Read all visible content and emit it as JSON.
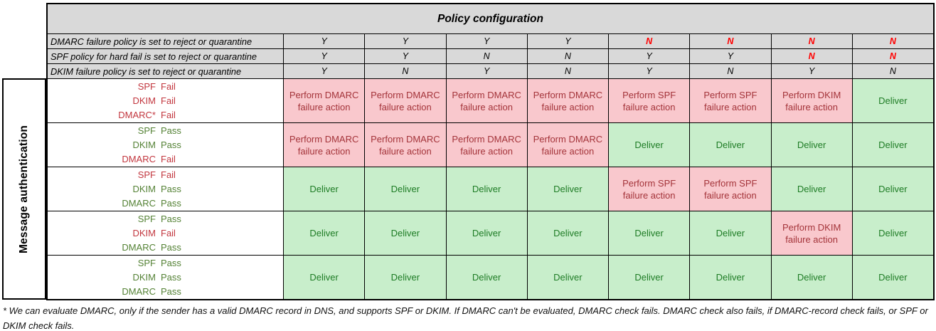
{
  "title": "Policy configuration",
  "axis_label": "Message authentication",
  "colors": {
    "header_bg": "#D9D9D9",
    "border": "#000000",
    "bad_bg": "#F9C8CD",
    "bad_text": "#A4343A",
    "good_bg": "#C8EECB",
    "good_text": "#1E7C25",
    "pass_label_text": "#548235",
    "fail_label_text": "#C2363E",
    "alert_text": "#FF0000"
  },
  "policy_rows": [
    {
      "label": "DMARC failure policy is set to reject or quarantine",
      "values": [
        {
          "text": "Y",
          "cls": "pcol"
        },
        {
          "text": "Y",
          "cls": "pcol"
        },
        {
          "text": "Y",
          "cls": "pcol"
        },
        {
          "text": "Y",
          "cls": "pcol"
        },
        {
          "text": "N",
          "cls": "pcol alert"
        },
        {
          "text": "N",
          "cls": "pcol alert"
        },
        {
          "text": "N",
          "cls": "pcol alert"
        },
        {
          "text": "N",
          "cls": "pcol alert"
        }
      ]
    },
    {
      "label": "SPF policy for hard fail is set to reject or quarantine",
      "values": [
        {
          "text": "Y",
          "cls": "pcol"
        },
        {
          "text": "Y",
          "cls": "pcol"
        },
        {
          "text": "N",
          "cls": "pcol"
        },
        {
          "text": "N",
          "cls": "pcol"
        },
        {
          "text": "Y",
          "cls": "pcol"
        },
        {
          "text": "Y",
          "cls": "pcol"
        },
        {
          "text": "N",
          "cls": "pcol alert"
        },
        {
          "text": "N",
          "cls": "pcol alert"
        }
      ]
    },
    {
      "label": "DKIM failure policy is set to reject or quarantine",
      "values": [
        {
          "text": "Y",
          "cls": "pcol"
        },
        {
          "text": "N",
          "cls": "pcol"
        },
        {
          "text": "Y",
          "cls": "pcol"
        },
        {
          "text": "N",
          "cls": "pcol"
        },
        {
          "text": "Y",
          "cls": "pcol"
        },
        {
          "text": "N",
          "cls": "pcol"
        },
        {
          "text": "Y",
          "cls": "pcol"
        },
        {
          "text": "N",
          "cls": "pcol"
        }
      ]
    }
  ],
  "body_rows": [
    {
      "checks": [
        {
          "name": "SPF",
          "result": "Fail",
          "cls": "authline fail"
        },
        {
          "name": "DKIM",
          "result": "Fail",
          "cls": "authline fail"
        },
        {
          "name": "DMARC*",
          "result": "Fail",
          "cls": "authline fail"
        }
      ],
      "cells": [
        {
          "text": "Perform DMARC\nfailure action",
          "cls": "cell bad"
        },
        {
          "text": "Perform DMARC\nfailure action",
          "cls": "cell bad"
        },
        {
          "text": "Perform DMARC\nfailure action",
          "cls": "cell bad"
        },
        {
          "text": "Perform DMARC\nfailure action",
          "cls": "cell bad"
        },
        {
          "text": "Perform SPF\nfailure action",
          "cls": "cell bad"
        },
        {
          "text": "Perform SPF\nfailure action",
          "cls": "cell bad"
        },
        {
          "text": "Perform DKIM\nfailure action",
          "cls": "cell bad"
        },
        {
          "text": "Deliver",
          "cls": "cell good"
        }
      ]
    },
    {
      "checks": [
        {
          "name": "SPF",
          "result": "Pass",
          "cls": "authline pass"
        },
        {
          "name": "DKIM",
          "result": "Pass",
          "cls": "authline pass"
        },
        {
          "name": "DMARC",
          "result": "Fail",
          "cls": "authline fail"
        }
      ],
      "cells": [
        {
          "text": "Perform DMARC\nfailure action",
          "cls": "cell bad"
        },
        {
          "text": "Perform DMARC\nfailure action",
          "cls": "cell bad"
        },
        {
          "text": "Perform DMARC\nfailure action",
          "cls": "cell bad"
        },
        {
          "text": "Perform DMARC\nfailure action",
          "cls": "cell bad"
        },
        {
          "text": "Deliver",
          "cls": "cell good"
        },
        {
          "text": "Deliver",
          "cls": "cell good"
        },
        {
          "text": "Deliver",
          "cls": "cell good"
        },
        {
          "text": "Deliver",
          "cls": "cell good"
        }
      ]
    },
    {
      "checks": [
        {
          "name": "SPF",
          "result": "Fail",
          "cls": "authline fail"
        },
        {
          "name": "DKIM",
          "result": "Pass",
          "cls": "authline pass"
        },
        {
          "name": "DMARC",
          "result": "Pass",
          "cls": "authline pass"
        }
      ],
      "cells": [
        {
          "text": "Deliver",
          "cls": "cell good"
        },
        {
          "text": "Deliver",
          "cls": "cell good"
        },
        {
          "text": "Deliver",
          "cls": "cell good"
        },
        {
          "text": "Deliver",
          "cls": "cell good"
        },
        {
          "text": "Perform SPF\nfailure action",
          "cls": "cell bad"
        },
        {
          "text": "Perform SPF\nfailure action",
          "cls": "cell bad"
        },
        {
          "text": "Deliver",
          "cls": "cell good"
        },
        {
          "text": "Deliver",
          "cls": "cell good"
        }
      ]
    },
    {
      "checks": [
        {
          "name": "SPF",
          "result": "Pass",
          "cls": "authline pass"
        },
        {
          "name": "DKIM",
          "result": "Fail",
          "cls": "authline fail"
        },
        {
          "name": "DMARC",
          "result": "Pass",
          "cls": "authline pass"
        }
      ],
      "cells": [
        {
          "text": "Deliver",
          "cls": "cell good"
        },
        {
          "text": "Deliver",
          "cls": "cell good"
        },
        {
          "text": "Deliver",
          "cls": "cell good"
        },
        {
          "text": "Deliver",
          "cls": "cell good"
        },
        {
          "text": "Deliver",
          "cls": "cell good"
        },
        {
          "text": "Deliver",
          "cls": "cell good"
        },
        {
          "text": "Perform DKIM\nfailure action",
          "cls": "cell bad"
        },
        {
          "text": "Deliver",
          "cls": "cell good"
        }
      ]
    },
    {
      "checks": [
        {
          "name": "SPF",
          "result": "Pass",
          "cls": "authline pass"
        },
        {
          "name": "DKIM",
          "result": "Pass",
          "cls": "authline pass"
        },
        {
          "name": "DMARC",
          "result": "Pass",
          "cls": "authline pass"
        }
      ],
      "cells": [
        {
          "text": "Deliver",
          "cls": "cell good"
        },
        {
          "text": "Deliver",
          "cls": "cell good"
        },
        {
          "text": "Deliver",
          "cls": "cell good"
        },
        {
          "text": "Deliver",
          "cls": "cell good"
        },
        {
          "text": "Deliver",
          "cls": "cell good"
        },
        {
          "text": "Deliver",
          "cls": "cell good"
        },
        {
          "text": "Deliver",
          "cls": "cell good"
        },
        {
          "text": "Deliver",
          "cls": "cell good"
        }
      ]
    }
  ],
  "footnote": "* We can evaluate DMARC, only if the sender has a valid DMARC record in DNS, and supports SPF or DKIM. If DMARC can't be evaluated, DMARC check fails. DMARC check also fails, if DMARC-record check fails, or SPF or DKIM check fails."
}
